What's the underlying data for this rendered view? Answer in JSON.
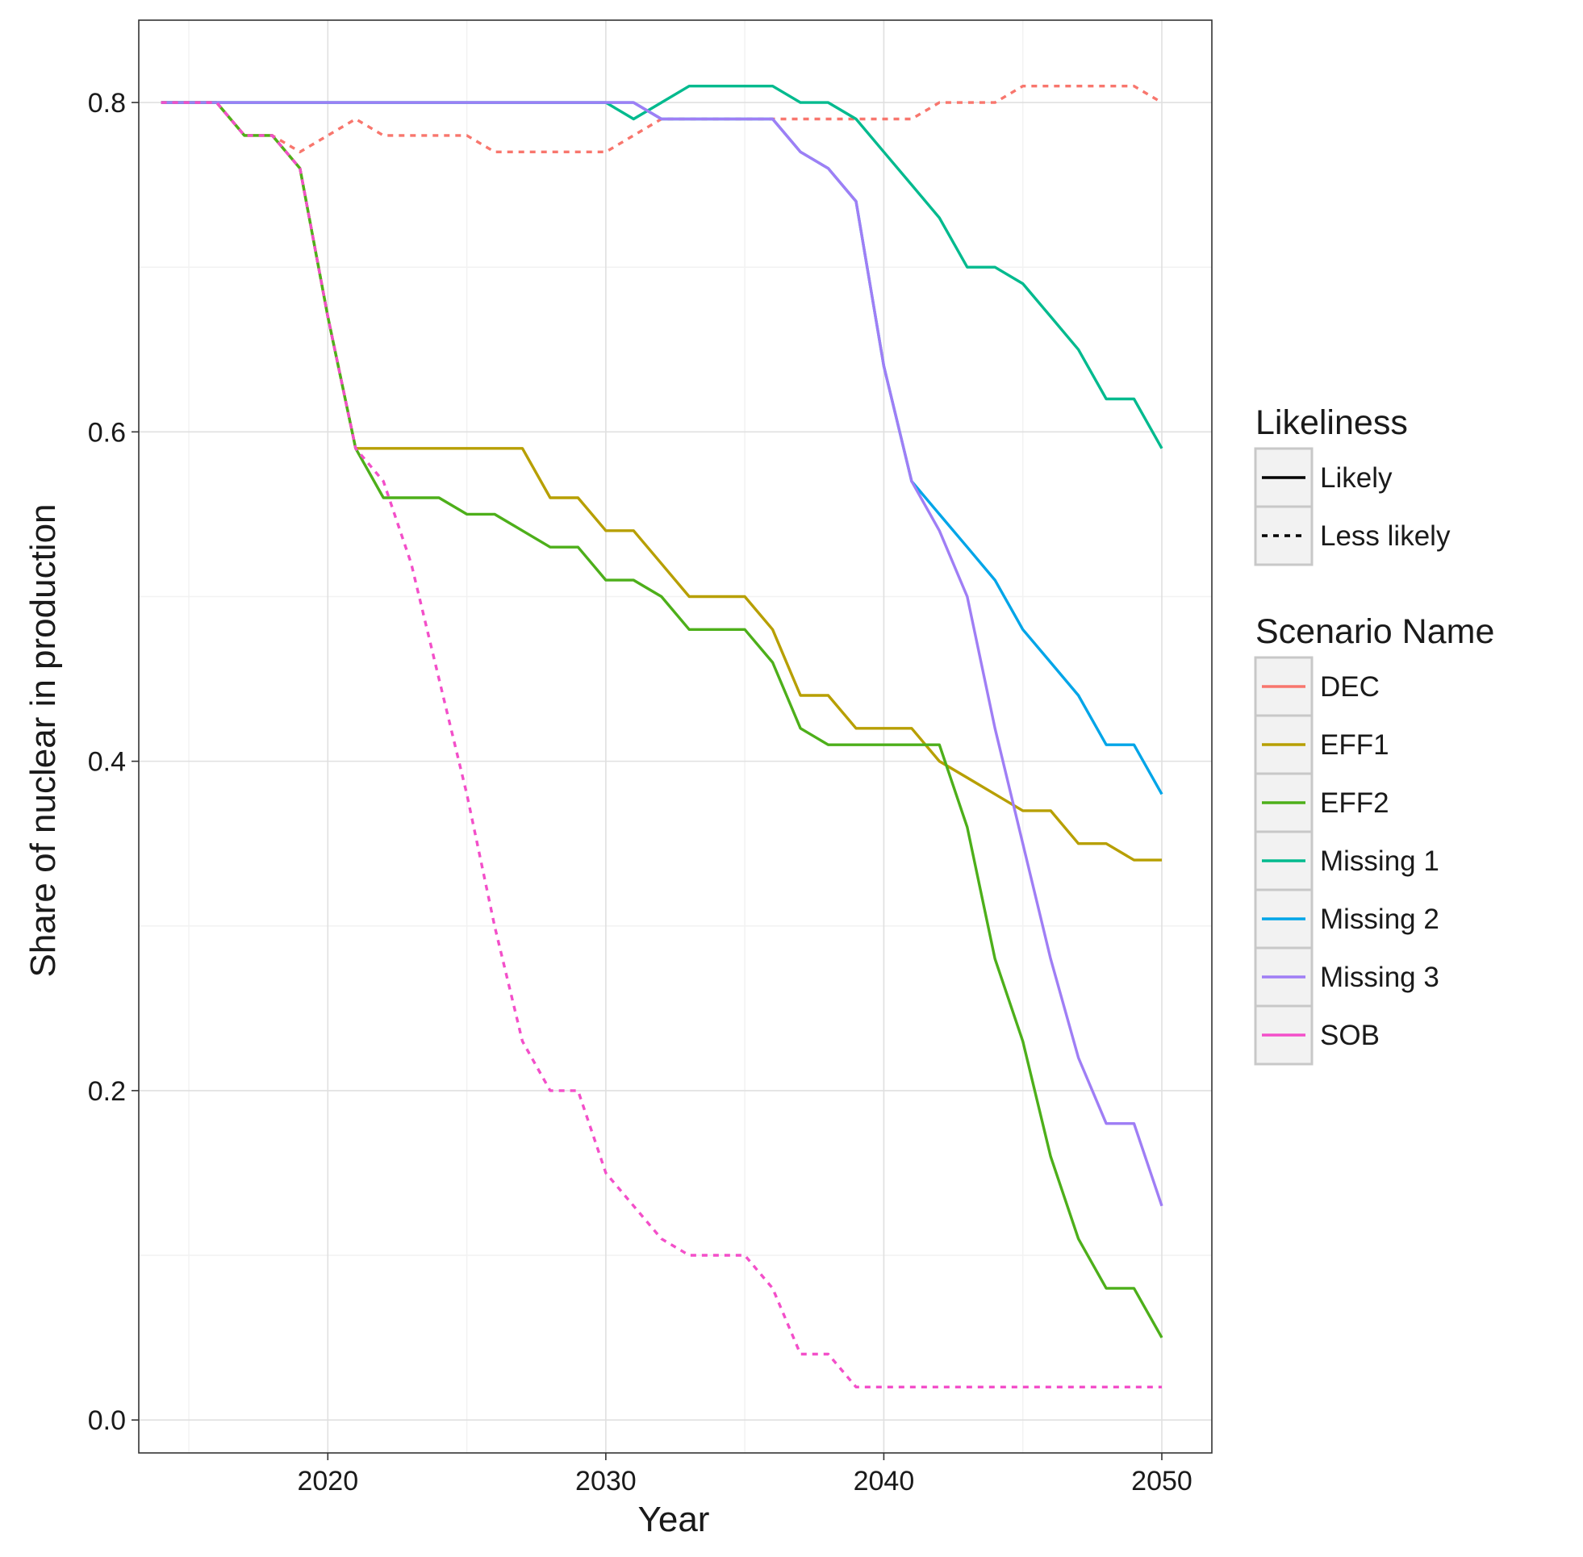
{
  "chart_data": {
    "type": "line",
    "title": "",
    "xlabel": "Year",
    "ylabel": "Share of nuclear in production",
    "xlim": [
      2013.2,
      2051.8
    ],
    "ylim": [
      -0.02,
      0.85
    ],
    "x_ticks": [
      2020,
      2030,
      2040,
      2050
    ],
    "y_ticks": [
      0.0,
      0.2,
      0.4,
      0.6,
      0.8
    ],
    "x_tick_labels": [
      "2020",
      "2030",
      "2040",
      "2050"
    ],
    "y_tick_labels": [
      "0.0",
      "0.2",
      "0.4",
      "0.6",
      "0.8"
    ],
    "grid": true,
    "legend_position": "right",
    "legend": {
      "linetype_title": "Likeliness",
      "linetype_entries": [
        {
          "label": "Likely",
          "linetype": "solid"
        },
        {
          "label": "Less likely",
          "linetype": "dashed"
        }
      ],
      "color_title": "Scenario Name"
    },
    "series": [
      {
        "name": "DEC",
        "color": "#F8766D",
        "linetype": "dashed",
        "x": [
          2014,
          2015,
          2016,
          2017,
          2018,
          2019,
          2020,
          2021,
          2022,
          2023,
          2024,
          2025,
          2026,
          2027,
          2028,
          2029,
          2030,
          2031,
          2032,
          2033,
          2034,
          2035,
          2036,
          2037,
          2038,
          2039,
          2040,
          2041,
          2042,
          2043,
          2044,
          2045,
          2046,
          2047,
          2048,
          2049,
          2050
        ],
        "y": [
          0.8,
          0.8,
          0.8,
          0.78,
          0.78,
          0.77,
          0.78,
          0.79,
          0.78,
          0.78,
          0.78,
          0.78,
          0.77,
          0.77,
          0.77,
          0.77,
          0.77,
          0.78,
          0.79,
          0.79,
          0.79,
          0.79,
          0.79,
          0.79,
          0.79,
          0.79,
          0.79,
          0.79,
          0.8,
          0.8,
          0.8,
          0.81,
          0.81,
          0.81,
          0.81,
          0.81,
          0.8
        ]
      },
      {
        "name": "EFF1",
        "color": "#B79F00",
        "linetype": "solid",
        "x": [
          2014,
          2015,
          2016,
          2017,
          2018,
          2019,
          2020,
          2021,
          2022,
          2023,
          2024,
          2025,
          2026,
          2027,
          2028,
          2029,
          2030,
          2031,
          2032,
          2033,
          2034,
          2035,
          2036,
          2037,
          2038,
          2039,
          2040,
          2041,
          2042,
          2043,
          2044,
          2045,
          2046,
          2047,
          2048,
          2049,
          2050
        ],
        "y": [
          0.8,
          0.8,
          0.8,
          0.78,
          0.78,
          0.76,
          0.67,
          0.59,
          0.59,
          0.59,
          0.59,
          0.59,
          0.59,
          0.59,
          0.56,
          0.56,
          0.54,
          0.54,
          0.52,
          0.5,
          0.5,
          0.5,
          0.48,
          0.44,
          0.44,
          0.42,
          0.42,
          0.42,
          0.4,
          0.39,
          0.38,
          0.37,
          0.37,
          0.35,
          0.35,
          0.34,
          0.34
        ]
      },
      {
        "name": "EFF2",
        "color": "#4DAF1A",
        "linetype": "solid",
        "x": [
          2014,
          2015,
          2016,
          2017,
          2018,
          2019,
          2020,
          2021,
          2022,
          2023,
          2024,
          2025,
          2026,
          2027,
          2028,
          2029,
          2030,
          2031,
          2032,
          2033,
          2034,
          2035,
          2036,
          2037,
          2038,
          2039,
          2040,
          2041,
          2042,
          2043,
          2044,
          2045,
          2046,
          2047,
          2048,
          2049,
          2050
        ],
        "y": [
          0.8,
          0.8,
          0.8,
          0.78,
          0.78,
          0.76,
          0.67,
          0.59,
          0.56,
          0.56,
          0.56,
          0.55,
          0.55,
          0.54,
          0.53,
          0.53,
          0.51,
          0.51,
          0.5,
          0.48,
          0.48,
          0.48,
          0.46,
          0.42,
          0.41,
          0.41,
          0.41,
          0.41,
          0.41,
          0.36,
          0.28,
          0.23,
          0.16,
          0.11,
          0.08,
          0.08,
          0.05
        ]
      },
      {
        "name": "Missing 1",
        "color": "#00BA8E",
        "linetype": "solid",
        "x": [
          2014,
          2015,
          2016,
          2017,
          2018,
          2019,
          2020,
          2021,
          2022,
          2023,
          2024,
          2025,
          2026,
          2027,
          2028,
          2029,
          2030,
          2031,
          2032,
          2033,
          2034,
          2035,
          2036,
          2037,
          2038,
          2039,
          2040,
          2041,
          2042,
          2043,
          2044,
          2045,
          2046,
          2047,
          2048,
          2049,
          2050
        ],
        "y": [
          0.8,
          0.8,
          0.8,
          0.8,
          0.8,
          0.8,
          0.8,
          0.8,
          0.8,
          0.8,
          0.8,
          0.8,
          0.8,
          0.8,
          0.8,
          0.8,
          0.8,
          0.79,
          0.8,
          0.81,
          0.81,
          0.81,
          0.81,
          0.8,
          0.8,
          0.79,
          0.77,
          0.75,
          0.73,
          0.7,
          0.7,
          0.69,
          0.67,
          0.65,
          0.62,
          0.62,
          0.59
        ]
      },
      {
        "name": "Missing 2",
        "color": "#00A5E8",
        "linetype": "solid",
        "x": [
          2014,
          2015,
          2016,
          2017,
          2018,
          2019,
          2020,
          2021,
          2022,
          2023,
          2024,
          2025,
          2026,
          2027,
          2028,
          2029,
          2030,
          2031,
          2032,
          2033,
          2034,
          2035,
          2036,
          2037,
          2038,
          2039,
          2040,
          2041,
          2042,
          2043,
          2044,
          2045,
          2046,
          2047,
          2048,
          2049,
          2050
        ],
        "y": [
          0.8,
          0.8,
          0.8,
          0.8,
          0.8,
          0.8,
          0.8,
          0.8,
          0.8,
          0.8,
          0.8,
          0.8,
          0.8,
          0.8,
          0.8,
          0.8,
          0.8,
          0.8,
          0.79,
          0.79,
          0.79,
          0.79,
          0.79,
          0.77,
          0.76,
          0.74,
          0.64,
          0.57,
          0.55,
          0.53,
          0.51,
          0.48,
          0.46,
          0.44,
          0.41,
          0.41,
          0.38
        ]
      },
      {
        "name": "Missing 3",
        "color": "#9F7EF5",
        "linetype": "solid",
        "x": [
          2014,
          2015,
          2016,
          2017,
          2018,
          2019,
          2020,
          2021,
          2022,
          2023,
          2024,
          2025,
          2026,
          2027,
          2028,
          2029,
          2030,
          2031,
          2032,
          2033,
          2034,
          2035,
          2036,
          2037,
          2038,
          2039,
          2040,
          2041,
          2042,
          2043,
          2044,
          2045,
          2046,
          2047,
          2048,
          2049,
          2050
        ],
        "y": [
          0.8,
          0.8,
          0.8,
          0.8,
          0.8,
          0.8,
          0.8,
          0.8,
          0.8,
          0.8,
          0.8,
          0.8,
          0.8,
          0.8,
          0.8,
          0.8,
          0.8,
          0.8,
          0.79,
          0.79,
          0.79,
          0.79,
          0.79,
          0.77,
          0.76,
          0.74,
          0.64,
          0.57,
          0.54,
          0.5,
          0.42,
          0.35,
          0.28,
          0.22,
          0.18,
          0.18,
          0.13
        ]
      },
      {
        "name": "SOB",
        "color": "#F34FC9",
        "linetype": "dashed",
        "x": [
          2014,
          2015,
          2016,
          2017,
          2018,
          2019,
          2020,
          2021,
          2022,
          2023,
          2024,
          2025,
          2026,
          2027,
          2028,
          2029,
          2030,
          2031,
          2032,
          2033,
          2034,
          2035,
          2036,
          2037,
          2038,
          2039,
          2040,
          2041,
          2042,
          2043,
          2044,
          2045,
          2046,
          2047,
          2048,
          2049,
          2050
        ],
        "y": [
          0.8,
          0.8,
          0.8,
          0.78,
          0.78,
          0.76,
          0.67,
          0.59,
          0.57,
          0.52,
          0.45,
          0.38,
          0.3,
          0.23,
          0.2,
          0.2,
          0.15,
          0.13,
          0.11,
          0.1,
          0.1,
          0.1,
          0.08,
          0.04,
          0.04,
          0.02,
          0.02,
          0.02,
          0.02,
          0.02,
          0.02,
          0.02,
          0.02,
          0.02,
          0.02,
          0.02,
          0.02
        ]
      }
    ]
  }
}
